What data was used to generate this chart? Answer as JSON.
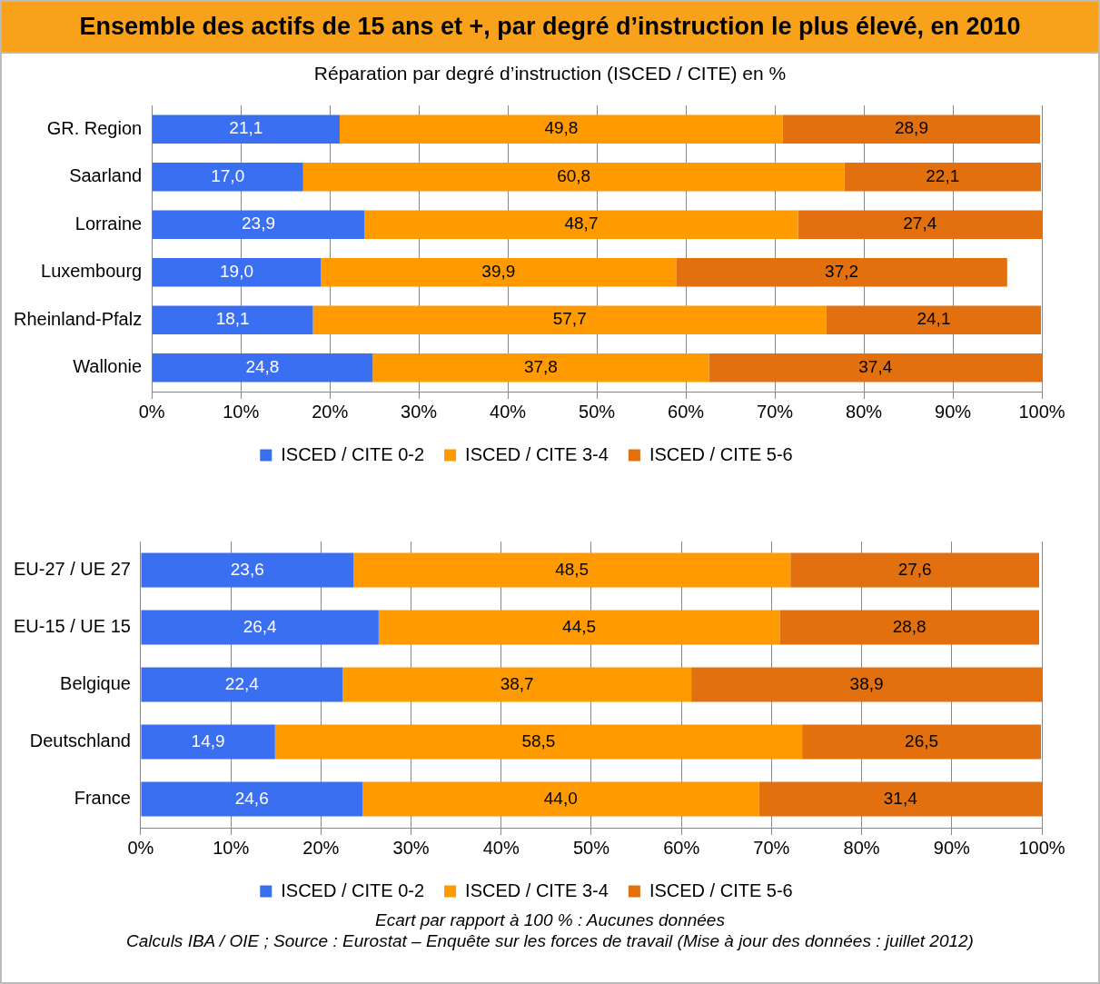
{
  "chart_data": [
    {
      "type": "bar",
      "title": "Ensemble des actifs de 15 ans et +, par degré d’instruction le plus élevé, en 2010",
      "subtitle": "Réparation par degré d’instruction (ISCED / CITE) en %",
      "orientation": "horizontal",
      "stacked": true,
      "categories": [
        "GR. Region",
        "Saarland",
        "Lorraine",
        "Luxembourg",
        "Rheinland-Pfalz",
        "Wallonie"
      ],
      "series": [
        {
          "name": "ISCED / CITE 0-2",
          "color": "#3a6ff2",
          "values": [
            21.1,
            17.0,
            23.9,
            19.0,
            18.1,
            24.8
          ],
          "value_labels": [
            "21,1",
            "17,0",
            "23,9",
            "19,0",
            "18,1",
            "24,8"
          ]
        },
        {
          "name": "ISCED / CITE 3-4",
          "color": "#ff9a00",
          "values": [
            49.8,
            60.8,
            48.7,
            39.9,
            57.7,
            37.8
          ],
          "value_labels": [
            "49,8",
            "60,8",
            "48,7",
            "39,9",
            "57,7",
            "37,8"
          ]
        },
        {
          "name": "ISCED / CITE 5-6",
          "color": "#e2700e",
          "values": [
            28.9,
            22.1,
            27.4,
            37.2,
            24.1,
            37.4
          ],
          "value_labels": [
            "28,9",
            "22,1",
            "27,4",
            "37,2",
            "24,1",
            "37,4"
          ]
        }
      ],
      "xlim": [
        0,
        100
      ],
      "xticks": [
        {
          "value": 0,
          "label": "0%"
        },
        {
          "value": 10,
          "label": "10%"
        },
        {
          "value": 20,
          "label": "20%"
        },
        {
          "value": 30,
          "label": "30%"
        },
        {
          "value": 40,
          "label": "40%"
        },
        {
          "value": 50,
          "label": "50%"
        },
        {
          "value": 60,
          "label": "60%"
        },
        {
          "value": 70,
          "label": "70%"
        },
        {
          "value": 80,
          "label": "80%"
        },
        {
          "value": 90,
          "label": "90%"
        },
        {
          "value": 100,
          "label": "100%"
        }
      ],
      "grid": "x",
      "legend": "bottom"
    },
    {
      "type": "bar",
      "orientation": "horizontal",
      "stacked": true,
      "categories": [
        "EU-27 / UE 27",
        "EU-15 / UE 15",
        "Belgique",
        "Deutschland",
        "France"
      ],
      "series": [
        {
          "name": "ISCED / CITE 0-2",
          "color": "#3a6ff2",
          "values": [
            23.6,
            26.4,
            22.4,
            14.9,
            24.6
          ],
          "value_labels": [
            "23,6",
            "26,4",
            "22,4",
            "14,9",
            "24,6"
          ]
        },
        {
          "name": "ISCED / CITE 3-4",
          "color": "#ff9a00",
          "values": [
            48.5,
            44.5,
            38.7,
            58.5,
            44.0
          ],
          "value_labels": [
            "48,5",
            "44,5",
            "38,7",
            "58,5",
            "44,0"
          ]
        },
        {
          "name": "ISCED / CITE 5-6",
          "color": "#e2700e",
          "values": [
            27.6,
            28.8,
            38.9,
            26.5,
            31.4
          ],
          "value_labels": [
            "27,6",
            "28,8",
            "38,9",
            "26,5",
            "31,4"
          ]
        }
      ],
      "xlim": [
        0,
        100
      ],
      "xticks": [
        {
          "value": 0,
          "label": "0%"
        },
        {
          "value": 10,
          "label": "10%"
        },
        {
          "value": 20,
          "label": "20%"
        },
        {
          "value": 30,
          "label": "30%"
        },
        {
          "value": 40,
          "label": "40%"
        },
        {
          "value": 50,
          "label": "50%"
        },
        {
          "value": 60,
          "label": "60%"
        },
        {
          "value": 70,
          "label": "70%"
        },
        {
          "value": 80,
          "label": "80%"
        },
        {
          "value": 90,
          "label": "90%"
        },
        {
          "value": 100,
          "label": "100%"
        }
      ],
      "grid": "x",
      "legend": "bottom",
      "annotations": [
        "Ecart par rapport à 100 % : Aucunes données",
        "Calculs IBA / OIE ; Source : Eurostat – Enquête sur les forces de travail (Mise à jour des données : juillet 2012)"
      ]
    }
  ]
}
